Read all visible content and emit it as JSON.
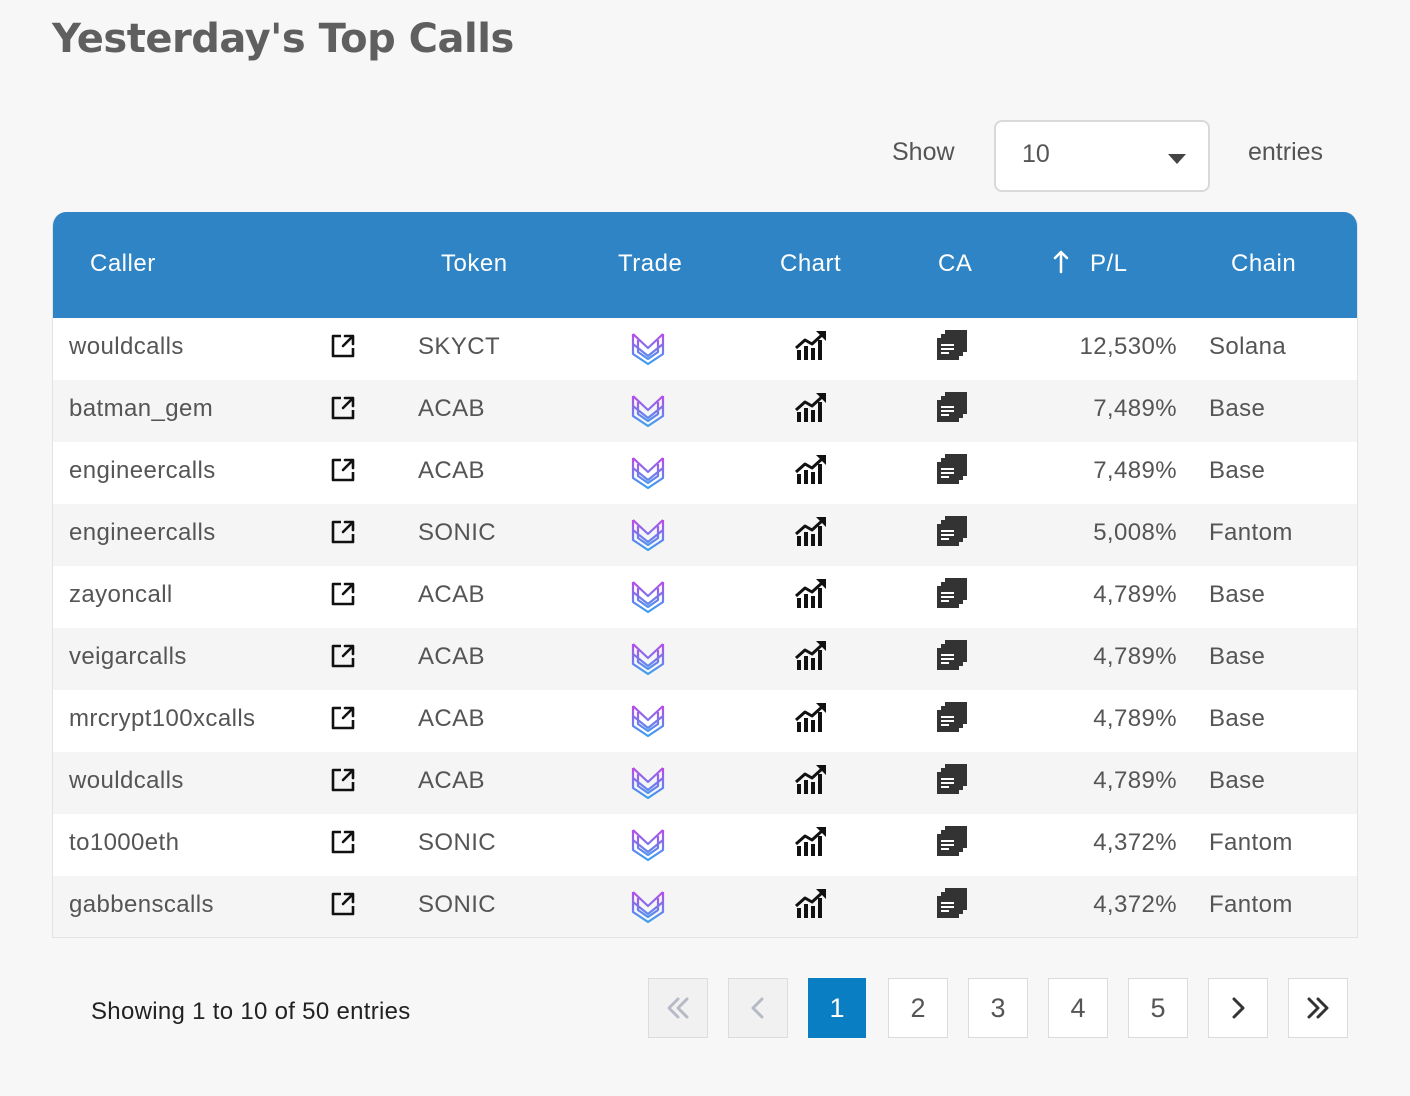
{
  "title": "Yesterday's Top Calls",
  "length_menu": {
    "show_label": "Show",
    "value": "10",
    "entries_label": "entries"
  },
  "columns": {
    "caller": "Caller",
    "token": "Token",
    "trade": "Trade",
    "chart": "Chart",
    "ca": "CA",
    "pl": "P/L",
    "chain": "Chain"
  },
  "sort": {
    "column": "P/L",
    "direction": "ascending-arrow-icon"
  },
  "colors": {
    "header_bg": "#2e84c4",
    "active_page": "#0a7ec2",
    "trade_icon_top": "#b84ce8",
    "trade_icon_bottom": "#3aa0ef"
  },
  "rows": [
    {
      "caller": "wouldcalls",
      "token": "SKYCT",
      "pl": "12,530%",
      "chain": "Solana"
    },
    {
      "caller": "batman_gem",
      "token": "ACAB",
      "pl": "7,489%",
      "chain": "Base"
    },
    {
      "caller": "engineercalls",
      "token": "ACAB",
      "pl": "7,489%",
      "chain": "Base"
    },
    {
      "caller": "engineercalls",
      "token": "SONIC",
      "pl": "5,008%",
      "chain": "Fantom"
    },
    {
      "caller": "zayoncall",
      "token": "ACAB",
      "pl": "4,789%",
      "chain": "Base"
    },
    {
      "caller": "veigarcalls",
      "token": "ACAB",
      "pl": "4,789%",
      "chain": "Base"
    },
    {
      "caller": "mrcrypt100xcalls",
      "token": "ACAB",
      "pl": "4,789%",
      "chain": "Base"
    },
    {
      "caller": "wouldcalls",
      "token": "ACAB",
      "pl": "4,789%",
      "chain": "Base"
    },
    {
      "caller": "to1000eth",
      "token": "SONIC",
      "pl": "4,372%",
      "chain": "Fantom"
    },
    {
      "caller": "gabbenscalls",
      "token": "SONIC",
      "pl": "4,372%",
      "chain": "Fantom"
    }
  ],
  "footer": {
    "info": "Showing 1 to 10 of 50 entries",
    "first_icon": "double-chevron-left-icon",
    "prev_icon": "chevron-left-icon",
    "pages": [
      "1",
      "2",
      "3",
      "4",
      "5"
    ],
    "current_page": "1",
    "next_icon": "chevron-right-icon",
    "last_icon": "double-chevron-right-icon"
  }
}
